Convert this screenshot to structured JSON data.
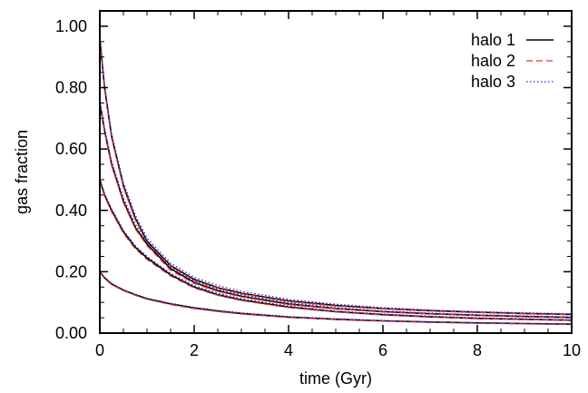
{
  "chart_data": {
    "type": "line",
    "xlabel": "time (Gyr)",
    "ylabel": "gas fraction",
    "xlim": [
      0,
      10
    ],
    "ylim": [
      0,
      1.05
    ],
    "x_ticks": [
      0,
      2,
      4,
      6,
      8,
      10
    ],
    "x_tick_labels": [
      "0",
      "2",
      "4",
      "6",
      "8",
      "10"
    ],
    "y_ticks": [
      0,
      0.2,
      0.4,
      0.6,
      0.8,
      1.0
    ],
    "y_tick_labels": [
      "0.00",
      "0.20",
      "0.40",
      "0.60",
      "0.80",
      "1.00"
    ],
    "grid": false,
    "legend_position": "top-right",
    "x": [
      0,
      0.1,
      0.25,
      0.5,
      0.75,
      1,
      1.5,
      2,
      2.5,
      3,
      4,
      5,
      6,
      7,
      8,
      9,
      10
    ],
    "series": [
      {
        "name": "halo 1",
        "color": "#000000",
        "dash": "solid",
        "curves": [
          [
            0.96,
            0.8,
            0.64,
            0.48,
            0.375,
            0.3,
            0.22,
            0.175,
            0.148,
            0.13,
            0.105,
            0.09,
            0.08,
            0.073,
            0.068,
            0.064,
            0.061
          ],
          [
            0.75,
            0.66,
            0.55,
            0.43,
            0.345,
            0.29,
            0.21,
            0.165,
            0.138,
            0.12,
            0.095,
            0.08,
            0.07,
            0.063,
            0.058,
            0.054,
            0.051
          ],
          [
            0.5,
            0.45,
            0.4,
            0.33,
            0.28,
            0.245,
            0.19,
            0.15,
            0.125,
            0.108,
            0.085,
            0.07,
            0.06,
            0.053,
            0.048,
            0.045,
            0.042
          ],
          [
            0.2,
            0.18,
            0.16,
            0.14,
            0.125,
            0.112,
            0.095,
            0.082,
            0.072,
            0.064,
            0.052,
            0.045,
            0.04,
            0.036,
            0.033,
            0.031,
            0.029
          ]
        ]
      },
      {
        "name": "halo 2",
        "color": "#e8302a",
        "dash": "dashed",
        "curves": [
          [
            0.955,
            0.795,
            0.635,
            0.475,
            0.37,
            0.295,
            0.218,
            0.172,
            0.146,
            0.128,
            0.103,
            0.088,
            0.079,
            0.072,
            0.067,
            0.063,
            0.06
          ],
          [
            0.745,
            0.655,
            0.545,
            0.425,
            0.34,
            0.285,
            0.205,
            0.162,
            0.136,
            0.118,
            0.093,
            0.079,
            0.069,
            0.062,
            0.057,
            0.053,
            0.05
          ],
          [
            0.495,
            0.445,
            0.395,
            0.325,
            0.275,
            0.24,
            0.186,
            0.147,
            0.123,
            0.106,
            0.083,
            0.069,
            0.059,
            0.052,
            0.047,
            0.044,
            0.041
          ],
          [
            0.198,
            0.178,
            0.158,
            0.138,
            0.123,
            0.11,
            0.093,
            0.08,
            0.07,
            0.062,
            0.051,
            0.044,
            0.039,
            0.035,
            0.032,
            0.03,
            0.028
          ]
        ]
      },
      {
        "name": "halo 3",
        "color": "#1c2bd6",
        "dash": "dotted",
        "curves": [
          [
            0.97,
            0.81,
            0.65,
            0.49,
            0.385,
            0.31,
            0.228,
            0.182,
            0.155,
            0.136,
            0.11,
            0.094,
            0.083,
            0.075,
            0.07,
            0.066,
            0.063
          ],
          [
            0.76,
            0.67,
            0.56,
            0.44,
            0.355,
            0.298,
            0.216,
            0.17,
            0.143,
            0.125,
            0.099,
            0.083,
            0.072,
            0.065,
            0.06,
            0.056,
            0.053
          ],
          [
            0.505,
            0.455,
            0.405,
            0.335,
            0.285,
            0.25,
            0.195,
            0.155,
            0.13,
            0.112,
            0.088,
            0.072,
            0.062,
            0.055,
            0.05,
            0.046,
            0.043
          ],
          [
            0.202,
            0.182,
            0.162,
            0.142,
            0.127,
            0.114,
            0.097,
            0.084,
            0.074,
            0.066,
            0.054,
            0.047,
            0.041,
            0.037,
            0.034,
            0.032,
            0.03
          ]
        ]
      }
    ]
  }
}
